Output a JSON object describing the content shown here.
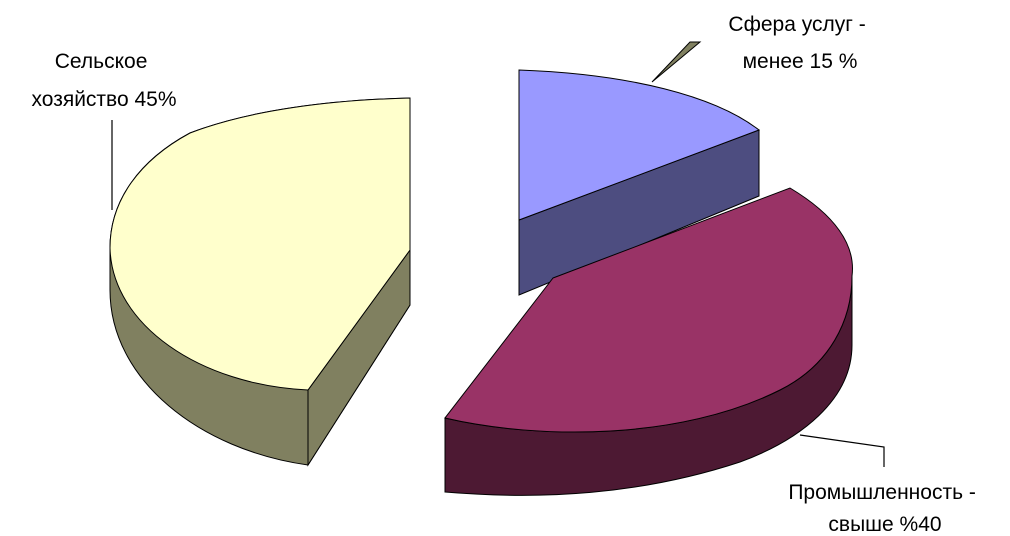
{
  "chart_data": {
    "type": "pie",
    "style": "3d-exploded",
    "title": "",
    "slices": [
      {
        "name": "Сельское хозяйство",
        "value": 45,
        "label_lines": [
          "Сельское",
          "хозяйство 45%"
        ],
        "top_color": "#FFFFCC",
        "side_color": "#808060"
      },
      {
        "name": "Сфера услуг",
        "value": 15,
        "label_lines": [
          "Сфера услуг -",
          "менее 15 %"
        ],
        "top_color": "#9999FF",
        "side_color": "#4D4D80"
      },
      {
        "name": "Промышленность",
        "value": 40,
        "label_lines": [
          "Промышленность -",
          "свыше  %40"
        ],
        "top_color": "#993366",
        "side_color": "#4D1933"
      }
    ]
  }
}
